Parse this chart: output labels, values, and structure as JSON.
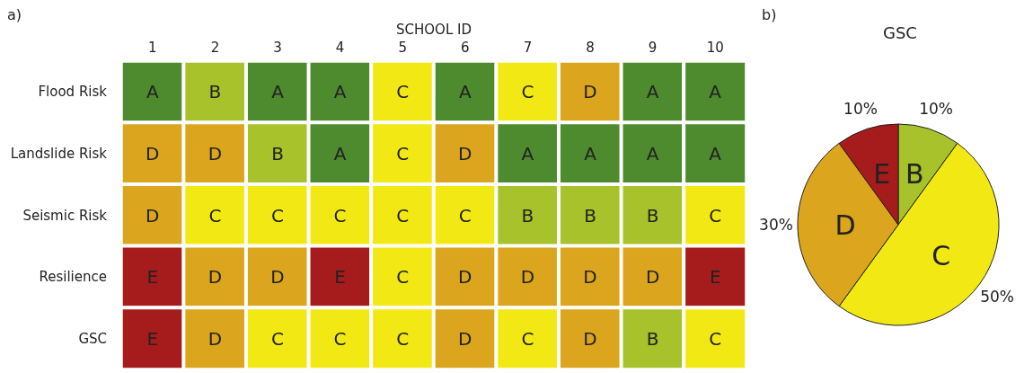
{
  "chart_data": [
    {
      "type": "heatmap",
      "xlabel": "SCHOOL ID",
      "annotations": [
        "a)"
      ],
      "categories": [
        "1",
        "2",
        "3",
        "4",
        "5",
        "6",
        "7",
        "8",
        "9",
        "10"
      ],
      "y_categories": [
        "Flood Risk",
        "Landslide Risk",
        "Seismic Risk",
        "Resilience",
        "GSC"
      ],
      "cells": [
        [
          "A",
          "B",
          "A",
          "A",
          "C",
          "A",
          "C",
          "D",
          "A",
          "A"
        ],
        [
          "D",
          "D",
          "B",
          "A",
          "C",
          "D",
          "A",
          "A",
          "A",
          "A"
        ],
        [
          "D",
          "C",
          "C",
          "C",
          "C",
          "C",
          "B",
          "B",
          "B",
          "C"
        ],
        [
          "E",
          "D",
          "D",
          "E",
          "C",
          "D",
          "D",
          "D",
          "D",
          "E"
        ],
        [
          "E",
          "D",
          "C",
          "C",
          "C",
          "D",
          "C",
          "D",
          "B",
          "C"
        ]
      ],
      "colors": [
        [
          "#4e8a2e",
          "#a7c22a",
          "#4e8a2e",
          "#4e8a2e",
          "#f2e914",
          "#4e8a2e",
          "#f2e914",
          "#dba51e",
          "#4e8a2e",
          "#4e8a2e"
        ],
        [
          "#dba51e",
          "#dba51e",
          "#a7c22a",
          "#4e8a2e",
          "#f2e914",
          "#dba51e",
          "#4e8a2e",
          "#4e8a2e",
          "#4e8a2e",
          "#4e8a2e"
        ],
        [
          "#dba51e",
          "#f2e914",
          "#f2e914",
          "#f2e914",
          "#f2e914",
          "#f2e914",
          "#a7c22a",
          "#a7c22a",
          "#a7c22a",
          "#f2e914"
        ],
        [
          "#a61c1c",
          "#dba51e",
          "#dba51e",
          "#a61c1c",
          "#f2e914",
          "#dba51e",
          "#dba51e",
          "#dba51e",
          "#dba51e",
          "#a61c1c"
        ],
        [
          "#a61c1c",
          "#dba51e",
          "#f2e914",
          "#f2e914",
          "#f2e914",
          "#dba51e",
          "#f2e914",
          "#dba51e",
          "#a7c22a",
          "#f2e914"
        ]
      ]
    },
    {
      "type": "pie",
      "title": "GSC",
      "annotations": [
        "b)"
      ],
      "categories": [
        "B",
        "C",
        "D",
        "E"
      ],
      "values": [
        10,
        50,
        30,
        10
      ],
      "colors": [
        "#a7c22a",
        "#f2e914",
        "#dba51e",
        "#a61c1c"
      ],
      "value_labels": [
        "10%",
        "50%",
        "30%",
        "10%"
      ]
    }
  ]
}
